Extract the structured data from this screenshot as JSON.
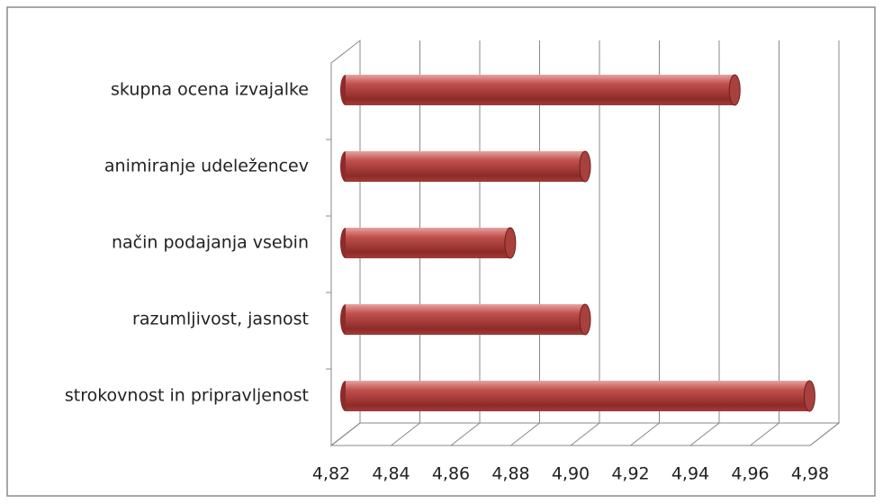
{
  "chart_data": {
    "type": "bar3d_horizontal",
    "categories": [
      "strokovnost in pripravljenost",
      "razumljivost, jasnost",
      "način podajanja vsebin",
      "animiranje udeležencev",
      "skupna ocena izvajalke"
    ],
    "values": [
      4.975,
      4.9,
      4.875,
      4.9,
      4.95
    ],
    "color": "#c0504d",
    "xlim": [
      4.82,
      4.98
    ],
    "xticks": [
      {
        "value": 4.82,
        "label": "4,82"
      },
      {
        "value": 4.84,
        "label": "4,84"
      },
      {
        "value": 4.86,
        "label": "4,86"
      },
      {
        "value": 4.88,
        "label": "4,88"
      },
      {
        "value": 4.9,
        "label": "4,90"
      },
      {
        "value": 4.92,
        "label": "4,92"
      },
      {
        "value": 4.94,
        "label": "4,94"
      },
      {
        "value": 4.96,
        "label": "4,96"
      },
      {
        "value": 4.98,
        "label": "4,98"
      }
    ],
    "grid": true
  }
}
